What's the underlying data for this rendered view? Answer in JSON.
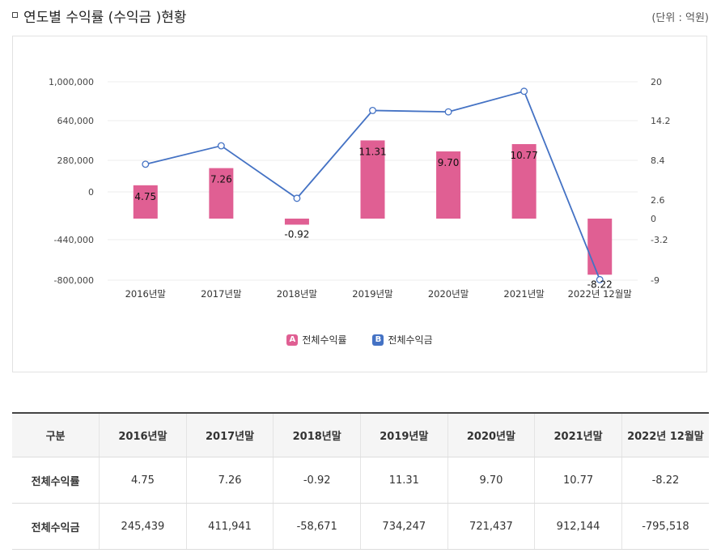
{
  "header": {
    "title": "연도별 수익률 (수익금 )현황",
    "unit": "(단위 : 억원)"
  },
  "colors": {
    "bar": "#e05f93",
    "line": "#4472c4",
    "grid": "#ececec"
  },
  "chart_data": {
    "type": "bar+line",
    "categories": [
      "2016년말",
      "2017년말",
      "2018년말",
      "2019년말",
      "2020년말",
      "2021년말",
      "2022년 12월말"
    ],
    "series": [
      {
        "name": "전체수익률",
        "type": "bar",
        "axis": "right",
        "values": [
          4.75,
          7.26,
          -0.92,
          11.31,
          9.7,
          10.77,
          -8.22
        ],
        "labels": [
          "4.75",
          "7.26",
          "-0.92",
          "11.31",
          "9.70",
          "10.77",
          "-8.22"
        ]
      },
      {
        "name": "전체수익금",
        "type": "line",
        "axis": "left",
        "values": [
          245439,
          411941,
          -58671,
          734247,
          721437,
          912144,
          -795518
        ]
      }
    ],
    "left_axis": {
      "ticks": [
        1000000,
        640000,
        280000,
        0,
        -440000,
        -800000
      ],
      "tick_labels": [
        "1,000,000",
        "640,000",
        "280,000",
        "0",
        "-440,000",
        "-800,000"
      ]
    },
    "right_axis": {
      "ticks": [
        20,
        14.2,
        8.4,
        2.6,
        0,
        -3.2,
        -9
      ],
      "tick_labels": [
        "20",
        "14.2",
        "8.4",
        "2.6",
        "0",
        "-3.2",
        "-9"
      ]
    },
    "legend": [
      {
        "badge": "A",
        "label": "전체수익률"
      },
      {
        "badge": "B",
        "label": "전체수익금"
      }
    ]
  },
  "table": {
    "header": [
      "구분",
      "2016년말",
      "2017년말",
      "2018년말",
      "2019년말",
      "2020년말",
      "2021년말",
      "2022년 12월말"
    ],
    "rows": [
      [
        "전체수익률",
        "4.75",
        "7.26",
        "-0.92",
        "11.31",
        "9.70",
        "10.77",
        "-8.22"
      ],
      [
        "전체수익금",
        "245,439",
        "411,941",
        "-58,671",
        "734,247",
        "721,437",
        "912,144",
        "-795,518"
      ]
    ]
  }
}
